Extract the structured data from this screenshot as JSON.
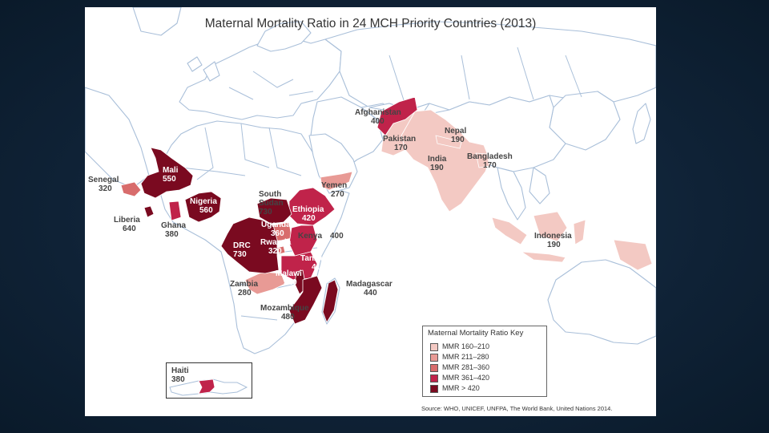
{
  "title": "Maternal Mortality Ratio in 24 MCH Priority Countries (2013)",
  "source": "Source: WHO, UNICEF, UNFPA, The World Bank, United Nations 2014.",
  "colors": {
    "ocean": "#ffffff",
    "land": "#ffffff",
    "border": "#a9bfd9",
    "c160_210": "#f3c9c3",
    "c211_280": "#e89a95",
    "c281_360": "#d86c6c",
    "c361_420": "#c0234a",
    "c420plus": "#7a0a20"
  },
  "legend": {
    "title": "Maternal Mortality Ratio Key",
    "items": [
      {
        "label": "MMR 160–210",
        "color": "#f3c9c3"
      },
      {
        "label": "MMR 211–280",
        "color": "#e89a95"
      },
      {
        "label": "MMR 281–360",
        "color": "#d86c6c"
      },
      {
        "label": "MMR 361–420",
        "color": "#c0234a"
      },
      {
        "label": "MMR > 420",
        "color": "#7a0a20"
      }
    ]
  },
  "countries": {
    "afghanistan": {
      "name": "Afghanistan",
      "value": "400"
    },
    "pakistan": {
      "name": "Pakistan",
      "value": "170"
    },
    "nepal": {
      "name": "Nepal",
      "value": "190"
    },
    "india": {
      "name": "India",
      "value": "190"
    },
    "bangladesh": {
      "name": "Bangladesh",
      "value": "170"
    },
    "yemen": {
      "name": "Yemen",
      "value": "270"
    },
    "indonesia": {
      "name": "Indonesia",
      "value": "190"
    },
    "senegal": {
      "name": "Senegal",
      "value": "320"
    },
    "mali": {
      "name": "Mali",
      "value": "550"
    },
    "nigeria": {
      "name": "Nigeria",
      "value": "560"
    },
    "liberia": {
      "name": "Liberia",
      "value": "640"
    },
    "ghana": {
      "name": "Ghana",
      "value": "380"
    },
    "south_sudan": {
      "name1": "South",
      "name2": "Sudan",
      "value": "730"
    },
    "ethiopia": {
      "name": "Ethiopia",
      "value": "420"
    },
    "uganda": {
      "name": "Uganda",
      "value": "360"
    },
    "rwanda": {
      "name": "Rwanda",
      "value": "320"
    },
    "kenya": {
      "name": "Kenya",
      "value": "400"
    },
    "drc": {
      "name": "DRC",
      "value": "730"
    },
    "tanzania": {
      "name": "Tanzania",
      "value": "410"
    },
    "malawi": {
      "name": "Malawi",
      "value": "510"
    },
    "zambia": {
      "name": "Zambia",
      "value": "280"
    },
    "madagascar": {
      "name": "Madagascar",
      "value": "440"
    },
    "mozambique": {
      "name": "Mozambique",
      "value": "480"
    },
    "haiti": {
      "name": "Haiti",
      "value": "380"
    }
  }
}
